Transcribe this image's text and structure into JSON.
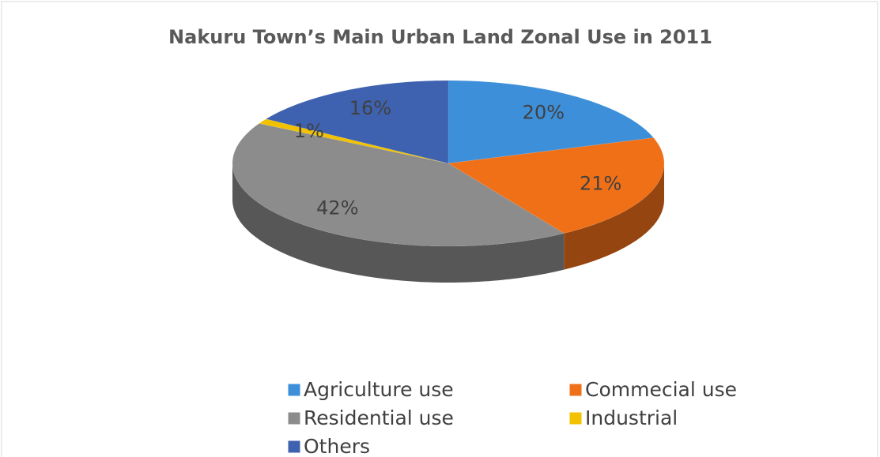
{
  "chart_data": {
    "type": "pie",
    "title": "Nakuru Town’s Main Urban Land Zonal Use in 2011",
    "categories": [
      "Agriculture use",
      "Commecial use",
      "Residential use",
      "Industrial",
      "Others"
    ],
    "values": [
      20,
      21,
      42,
      1,
      16
    ],
    "value_labels": [
      "20%",
      "21%",
      "42%",
      "1%",
      "16%"
    ],
    "colors": [
      "#3d8fd9",
      "#f07018",
      "#8c8c8c",
      "#f2c200",
      "#3f62b0"
    ],
    "legend": "bottom"
  }
}
